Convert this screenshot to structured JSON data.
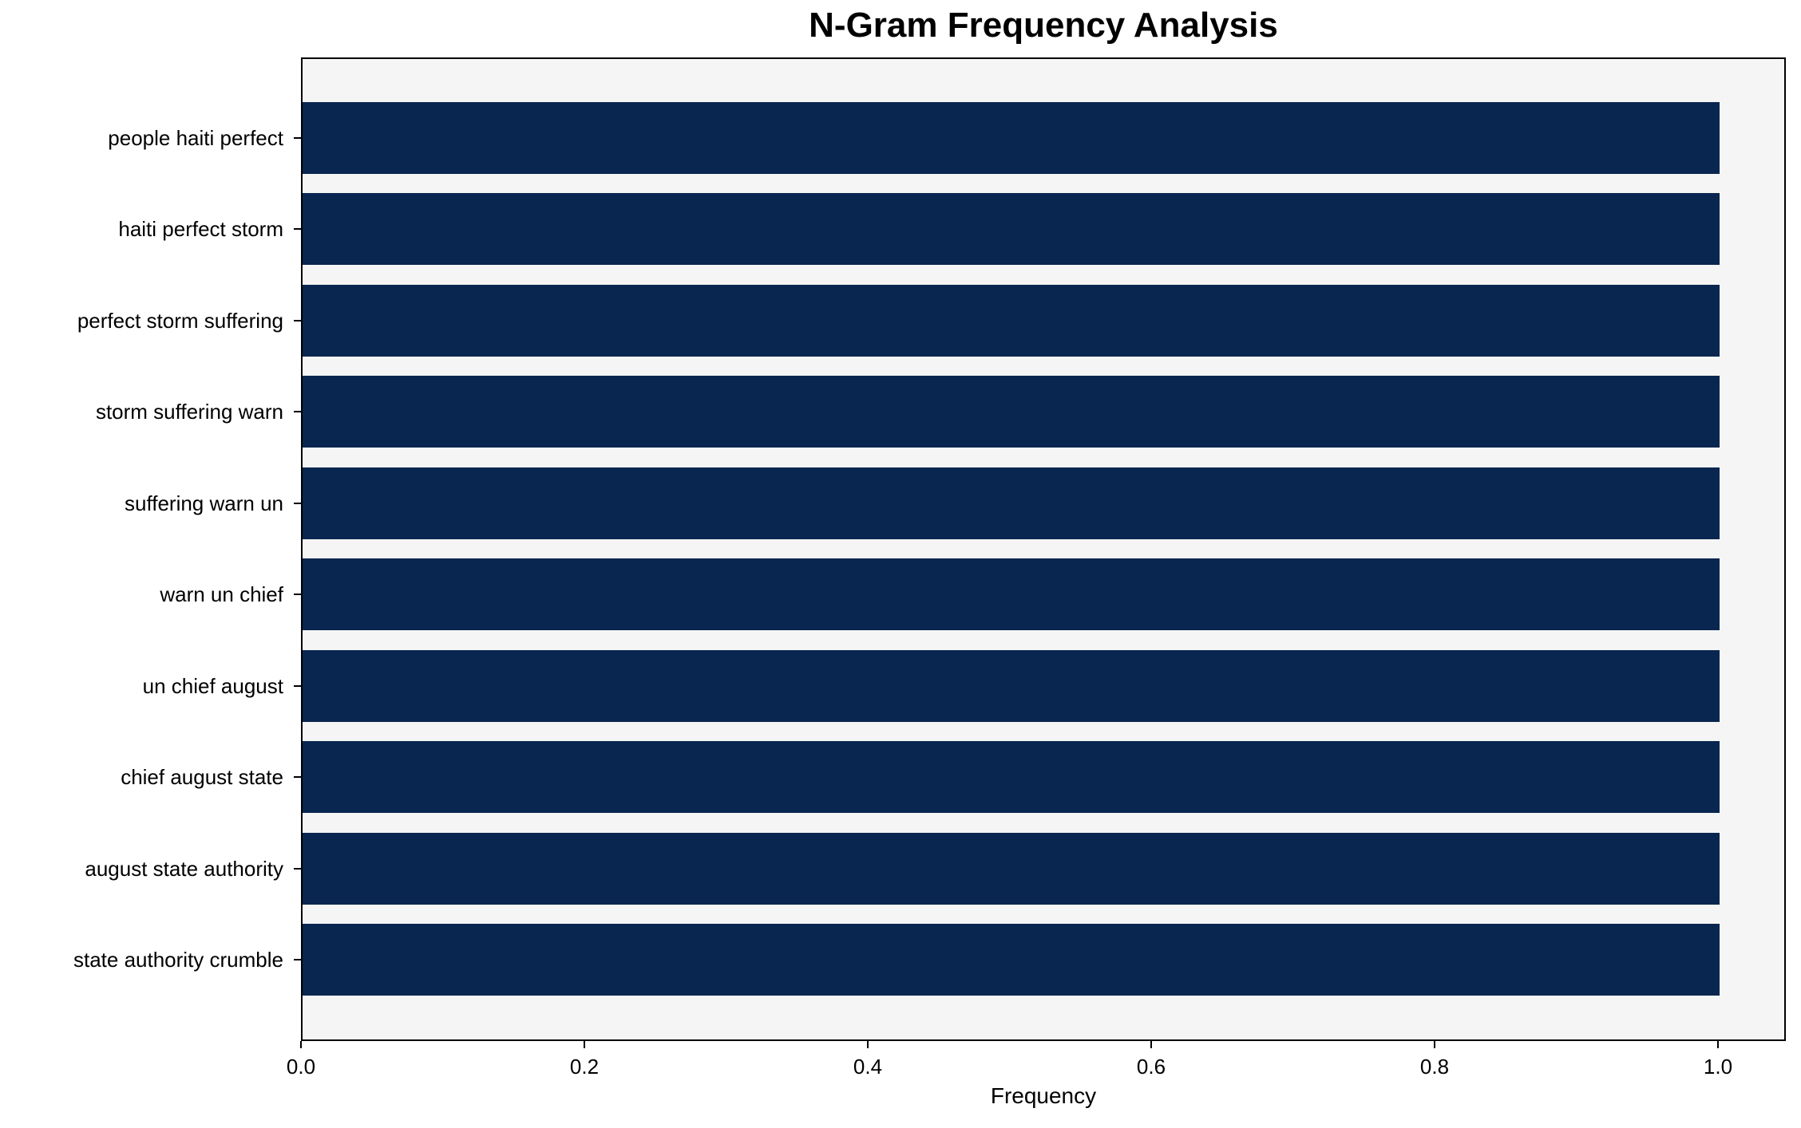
{
  "chart_data": {
    "type": "bar",
    "orientation": "horizontal",
    "title": "N-Gram Frequency Analysis",
    "xlabel": "Frequency",
    "ylabel": "",
    "categories": [
      "people haiti perfect",
      "haiti perfect storm",
      "perfect storm suffering",
      "storm suffering warn",
      "suffering warn un",
      "warn un chief",
      "un chief august",
      "chief august state",
      "august state authority",
      "state authority crumble"
    ],
    "values": [
      1.0,
      1.0,
      1.0,
      1.0,
      1.0,
      1.0,
      1.0,
      1.0,
      1.0,
      1.0
    ],
    "xlim": [
      0.0,
      1.05
    ],
    "xticks": [
      0.0,
      0.2,
      0.4,
      0.6,
      0.8,
      1.0
    ],
    "xtick_labels": [
      "0.0",
      "0.2",
      "0.4",
      "0.6",
      "0.8",
      "1.0"
    ],
    "grid": false,
    "legend": "none",
    "colors": {
      "bar": "#08264f",
      "plot_background": "#f5f5f5",
      "figure_background": "#ffffff",
      "spine": "#000000",
      "text": "#000000"
    }
  }
}
